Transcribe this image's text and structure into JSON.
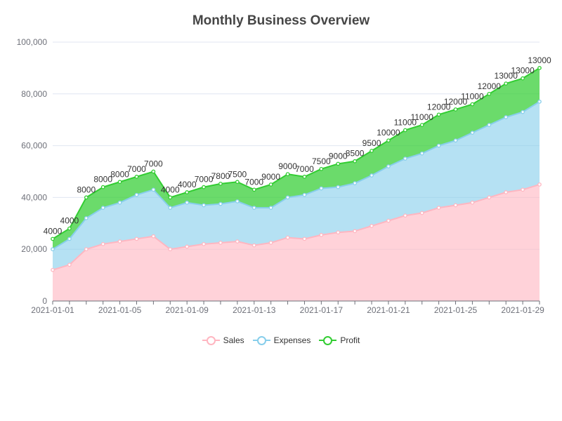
{
  "chart_data": {
    "type": "area",
    "stacked": true,
    "title": "Monthly Business Overview",
    "xlabel": "",
    "ylabel": "",
    "ylim": [
      0,
      100000
    ],
    "y_ticks": [
      "0",
      "20,000",
      "40,000",
      "60,000",
      "80,000",
      "100,000"
    ],
    "x_tick_labels": [
      "2021-01-01",
      "2021-01-05",
      "2021-01-09",
      "2021-01-13",
      "2021-01-17",
      "2021-01-21",
      "2021-01-25",
      "2021-01-29"
    ],
    "x": [
      "2021-01-01",
      "2021-01-02",
      "2021-01-03",
      "2021-01-04",
      "2021-01-05",
      "2021-01-06",
      "2021-01-07",
      "2021-01-08",
      "2021-01-09",
      "2021-01-10",
      "2021-01-11",
      "2021-01-12",
      "2021-01-13",
      "2021-01-14",
      "2021-01-15",
      "2021-01-16",
      "2021-01-17",
      "2021-01-18",
      "2021-01-19",
      "2021-01-20",
      "2021-01-21",
      "2021-01-22",
      "2021-01-23",
      "2021-01-24",
      "2021-01-25",
      "2021-01-26",
      "2021-01-27",
      "2021-01-28",
      "2021-01-29",
      "2021-01-30"
    ],
    "grid": true,
    "legend_position": "bottom",
    "series": [
      {
        "name": "Sales",
        "color": "#ffb6c1",
        "values": [
          12000,
          14000,
          20000,
          22000,
          23000,
          24000,
          25000,
          20000,
          21000,
          22000,
          22500,
          23000,
          21500,
          22500,
          24500,
          24000,
          25500,
          26500,
          27000,
          29000,
          31000,
          33000,
          34000,
          36000,
          37000,
          38000,
          40000,
          42000,
          43000,
          45000
        ]
      },
      {
        "name": "Expenses",
        "color": "#87ceeb",
        "values": [
          8000,
          10000,
          12000,
          14000,
          15000,
          17000,
          18000,
          16000,
          17000,
          15000,
          15000,
          15500,
          14500,
          13500,
          15500,
          17000,
          18000,
          17500,
          18500,
          19500,
          21000,
          22000,
          23000,
          24000,
          25000,
          27000,
          28000,
          29000,
          30000,
          32000
        ]
      },
      {
        "name": "Profit",
        "color": "#32cd32",
        "values": [
          4000,
          4000,
          8000,
          8000,
          8000,
          7000,
          7000,
          4000,
          4000,
          7000,
          7800,
          7500,
          7000,
          9000,
          9000,
          7000,
          7500,
          9000,
          8500,
          9500,
          10000,
          11000,
          11000,
          12000,
          12000,
          11000,
          12000,
          13000,
          13000,
          13000
        ]
      }
    ],
    "profit_labels": [
      "4000",
      "4000",
      "8000",
      "8000",
      "8000",
      "7000",
      "7000",
      "4000",
      "4000",
      "7000",
      "7800",
      "7500",
      "7000",
      "9000",
      "9000",
      "7000",
      "7500",
      "9000",
      "8500",
      "9500",
      "10000",
      "11000",
      "11000",
      "12000",
      "12000",
      "11000",
      "12000",
      "13000",
      "13000",
      "13000"
    ]
  }
}
